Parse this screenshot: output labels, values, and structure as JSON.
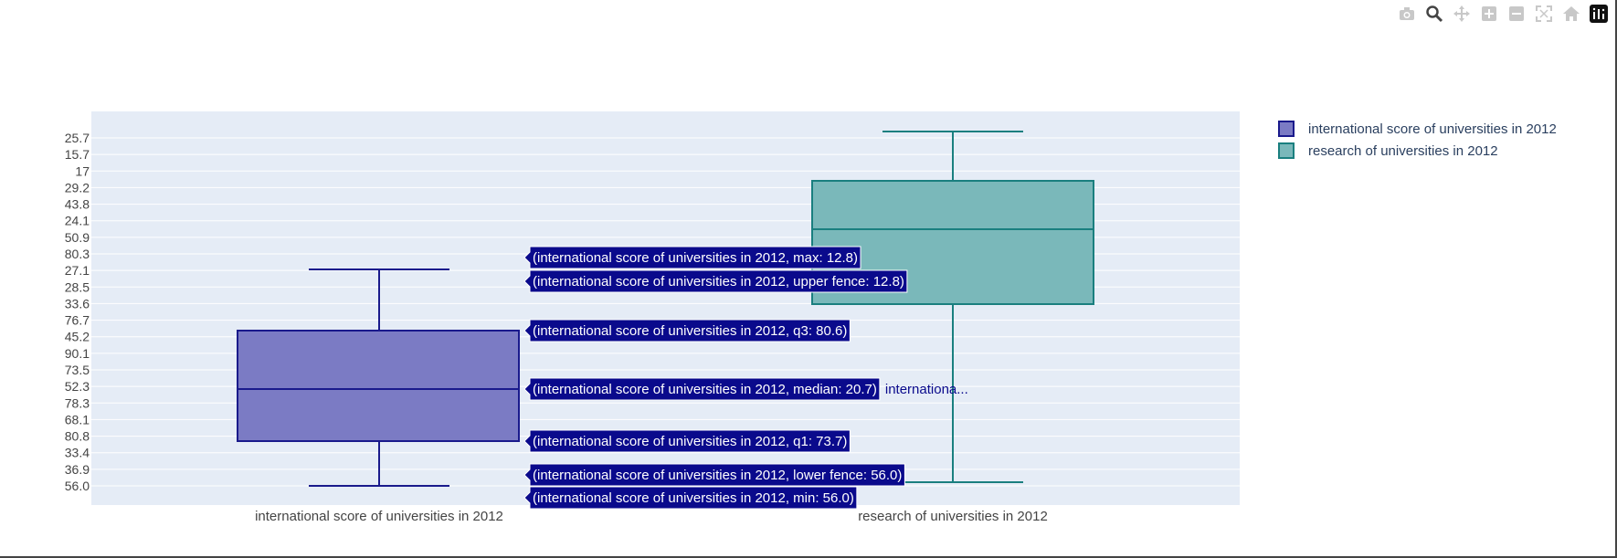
{
  "modebar": {
    "buttons": [
      "camera-icon",
      "zoom-icon",
      "pan-icon",
      "zoom-in-icon",
      "zoom-out-icon",
      "autoscale-icon",
      "reset-axes-icon",
      "plotly-logo-icon"
    ]
  },
  "colors": {
    "plot_bg": "#E5ECF6",
    "grid": "#ffffff",
    "series1_line": "#1a1a8c",
    "series1_fill": "#7b7bc4",
    "series2_line": "#1a7f7f",
    "series2_fill": "#7ab8ba",
    "hover_bg": "#0a0a8c"
  },
  "chart_data": {
    "type": "box",
    "y_category_order": [
      "56.0",
      "36.9",
      "33.4",
      "80.8",
      "68.1",
      "78.3",
      "52.3",
      "73.5",
      "90.1",
      "45.2",
      "76.7",
      "33.6",
      "28.5",
      "27.1",
      "80.3",
      "50.9",
      "24.1",
      "43.8",
      "29.2",
      "17",
      "15.7",
      "25.7"
    ],
    "categories": [
      "international score of universities in 2012",
      "research of universities in 2012"
    ],
    "series": [
      {
        "name": "international score of universities in 2012",
        "color": "#1a1a8c",
        "min": "56.0",
        "lower_fence": "56.0",
        "q1": "73.7",
        "median": "20.7",
        "q3": "80.6",
        "upper_fence": "12.8",
        "max": "12.8"
      },
      {
        "name": "research of universities in 2012",
        "color": "#1a7f7f"
      }
    ],
    "hover_labels": [
      "(international score of universities in 2012, max: 12.8)",
      "(international score of universities in 2012, upper fence: 12.8)",
      "(international score of universities in 2012, q3: 80.6)",
      "(international score of universities in 2012, median: 20.7)",
      "(international score of universities in 2012, q1: 73.7)",
      "(international score of universities in 2012, lower fence: 56.0)",
      "(international score of universities in 2012, min: 56.0)"
    ],
    "hover_trace_name": "internationa...",
    "legend": [
      "international score of universities in 2012",
      "research of universities in 2012"
    ]
  }
}
